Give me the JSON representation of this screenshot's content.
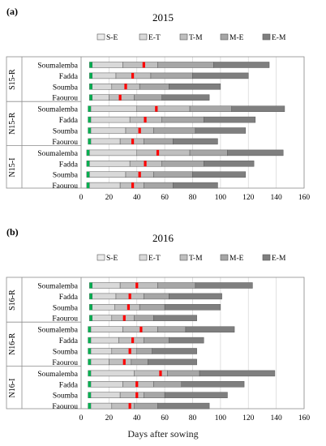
{
  "figure": {
    "xlabel": "Days after sowing"
  },
  "legend": [
    {
      "label": "S-E",
      "color": "#ebebeb"
    },
    {
      "label": "E-T",
      "color": "#d9d9d9"
    },
    {
      "label": "T-M",
      "color": "#bfbfbf"
    },
    {
      "label": "M-E",
      "color": "#a6a6a6"
    },
    {
      "label": "E-M",
      "color": "#7f7f7f"
    }
  ],
  "markers": {
    "green": "#00b050",
    "red": "#ff0000"
  },
  "chart_data": [
    {
      "type": "bar",
      "orientation": "horizontal",
      "stacked": true,
      "panel": "(a)",
      "title": "2015",
      "xlim": [
        0,
        160
      ],
      "xticks": [
        0,
        20,
        40,
        60,
        80,
        100,
        120,
        140,
        160
      ],
      "stage_names": [
        "S-E",
        "E-T",
        "T-M",
        "M-E",
        "E-M"
      ],
      "groups": [
        {
          "name": "S15-R",
          "rows": [
            {
              "site": "Soumalemba",
              "bounds": [
                6,
                8,
                30,
                55,
                95,
                135
              ],
              "green": 7,
              "red": 45
            },
            {
              "site": "Fadda",
              "bounds": [
                6,
                8,
                25,
                50,
                80,
                120
              ],
              "green": 7,
              "red": 37
            },
            {
              "site": "Soumba",
              "bounds": [
                6,
                8,
                22,
                42,
                63,
                100
              ],
              "green": 7,
              "red": 32
            },
            {
              "site": "Faourou",
              "bounds": [
                6,
                8,
                20,
                38,
                58,
                92
              ],
              "green": 7,
              "red": 28
            }
          ]
        },
        {
          "name": "N15-R",
          "rows": [
            {
              "site": "Soumalemba",
              "bounds": [
                5,
                7,
                40,
                78,
                108,
                146
              ],
              "green": 6,
              "red": 54
            },
            {
              "site": "Fadda",
              "bounds": [
                5,
                7,
                35,
                58,
                88,
                125
              ],
              "green": 6,
              "red": 46
            },
            {
              "site": "Soumba",
              "bounds": [
                5,
                7,
                32,
                52,
                82,
                118
              ],
              "green": 6,
              "red": 42
            },
            {
              "site": "Faourou",
              "bounds": [
                5,
                7,
                28,
                45,
                66,
                98
              ],
              "green": 6,
              "red": 37
            }
          ]
        },
        {
          "name": "N15-I",
          "rows": [
            {
              "site": "Soumalemba",
              "bounds": [
                4,
                6,
                40,
                78,
                105,
                145
              ],
              "green": 5,
              "red": 55
            },
            {
              "site": "Fadda",
              "bounds": [
                4,
                6,
                35,
                58,
                88,
                124
              ],
              "green": 5,
              "red": 46
            },
            {
              "site": "Soumba",
              "bounds": [
                4,
                6,
                32,
                52,
                80,
                118
              ],
              "green": 5,
              "red": 42
            },
            {
              "site": "Faourou",
              "bounds": [
                4,
                6,
                28,
                45,
                66,
                98
              ],
              "green": 5,
              "red": 37
            }
          ]
        }
      ]
    },
    {
      "type": "bar",
      "orientation": "horizontal",
      "stacked": true,
      "panel": "(b)",
      "title": "2016",
      "xlim": [
        0,
        160
      ],
      "xticks": [
        0,
        20,
        40,
        60,
        80,
        100,
        120,
        140,
        160
      ],
      "stage_names": [
        "S-E",
        "E-T",
        "T-M",
        "M-E",
        "E-M"
      ],
      "groups": [
        {
          "name": "S16-R",
          "rows": [
            {
              "site": "Soumalemba",
              "bounds": [
                6,
                8,
                28,
                55,
                82,
                123
              ],
              "green": 7,
              "red": 40
            },
            {
              "site": "Fadda",
              "bounds": [
                6,
                8,
                25,
                45,
                63,
                101
              ],
              "green": 7,
              "red": 35
            },
            {
              "site": "Soumba",
              "bounds": [
                6,
                8,
                24,
                42,
                60,
                100
              ],
              "green": 7,
              "red": 34
            },
            {
              "site": "Faourou",
              "bounds": [
                6,
                8,
                22,
                38,
                52,
                83
              ],
              "green": 7,
              "red": 31
            }
          ]
        },
        {
          "name": "N16-R",
          "rows": [
            {
              "site": "Soumalemba",
              "bounds": [
                5,
                7,
                30,
                55,
                75,
                110
              ],
              "green": 6,
              "red": 43
            },
            {
              "site": "Fadda",
              "bounds": [
                5,
                7,
                27,
                45,
                63,
                88
              ],
              "green": 6,
              "red": 37
            },
            {
              "site": "Soumba",
              "bounds": [
                5,
                7,
                22,
                40,
                51,
                83
              ],
              "green": 6,
              "red": 35
            },
            {
              "site": "Faourou",
              "bounds": [
                5,
                7,
                20,
                36,
                48,
                83
              ],
              "green": 6,
              "red": 31
            }
          ]
        },
        {
          "name": "N16-I",
          "rows": [
            {
              "site": "Soumalemba",
              "bounds": [
                5,
                7,
                38,
                62,
                85,
                139
              ],
              "green": 6,
              "red": 57
            },
            {
              "site": "Fadda",
              "bounds": [
                5,
                7,
                30,
                52,
                72,
                117
              ],
              "green": 6,
              "red": 40
            },
            {
              "site": "Soumba",
              "bounds": [
                5,
                7,
                28,
                45,
                60,
                105
              ],
              "green": 6,
              "red": 40
            },
            {
              "site": "Faourou",
              "bounds": [
                5,
                7,
                22,
                38,
                55,
                92
              ],
              "green": 6,
              "red": 35
            }
          ]
        }
      ]
    }
  ]
}
